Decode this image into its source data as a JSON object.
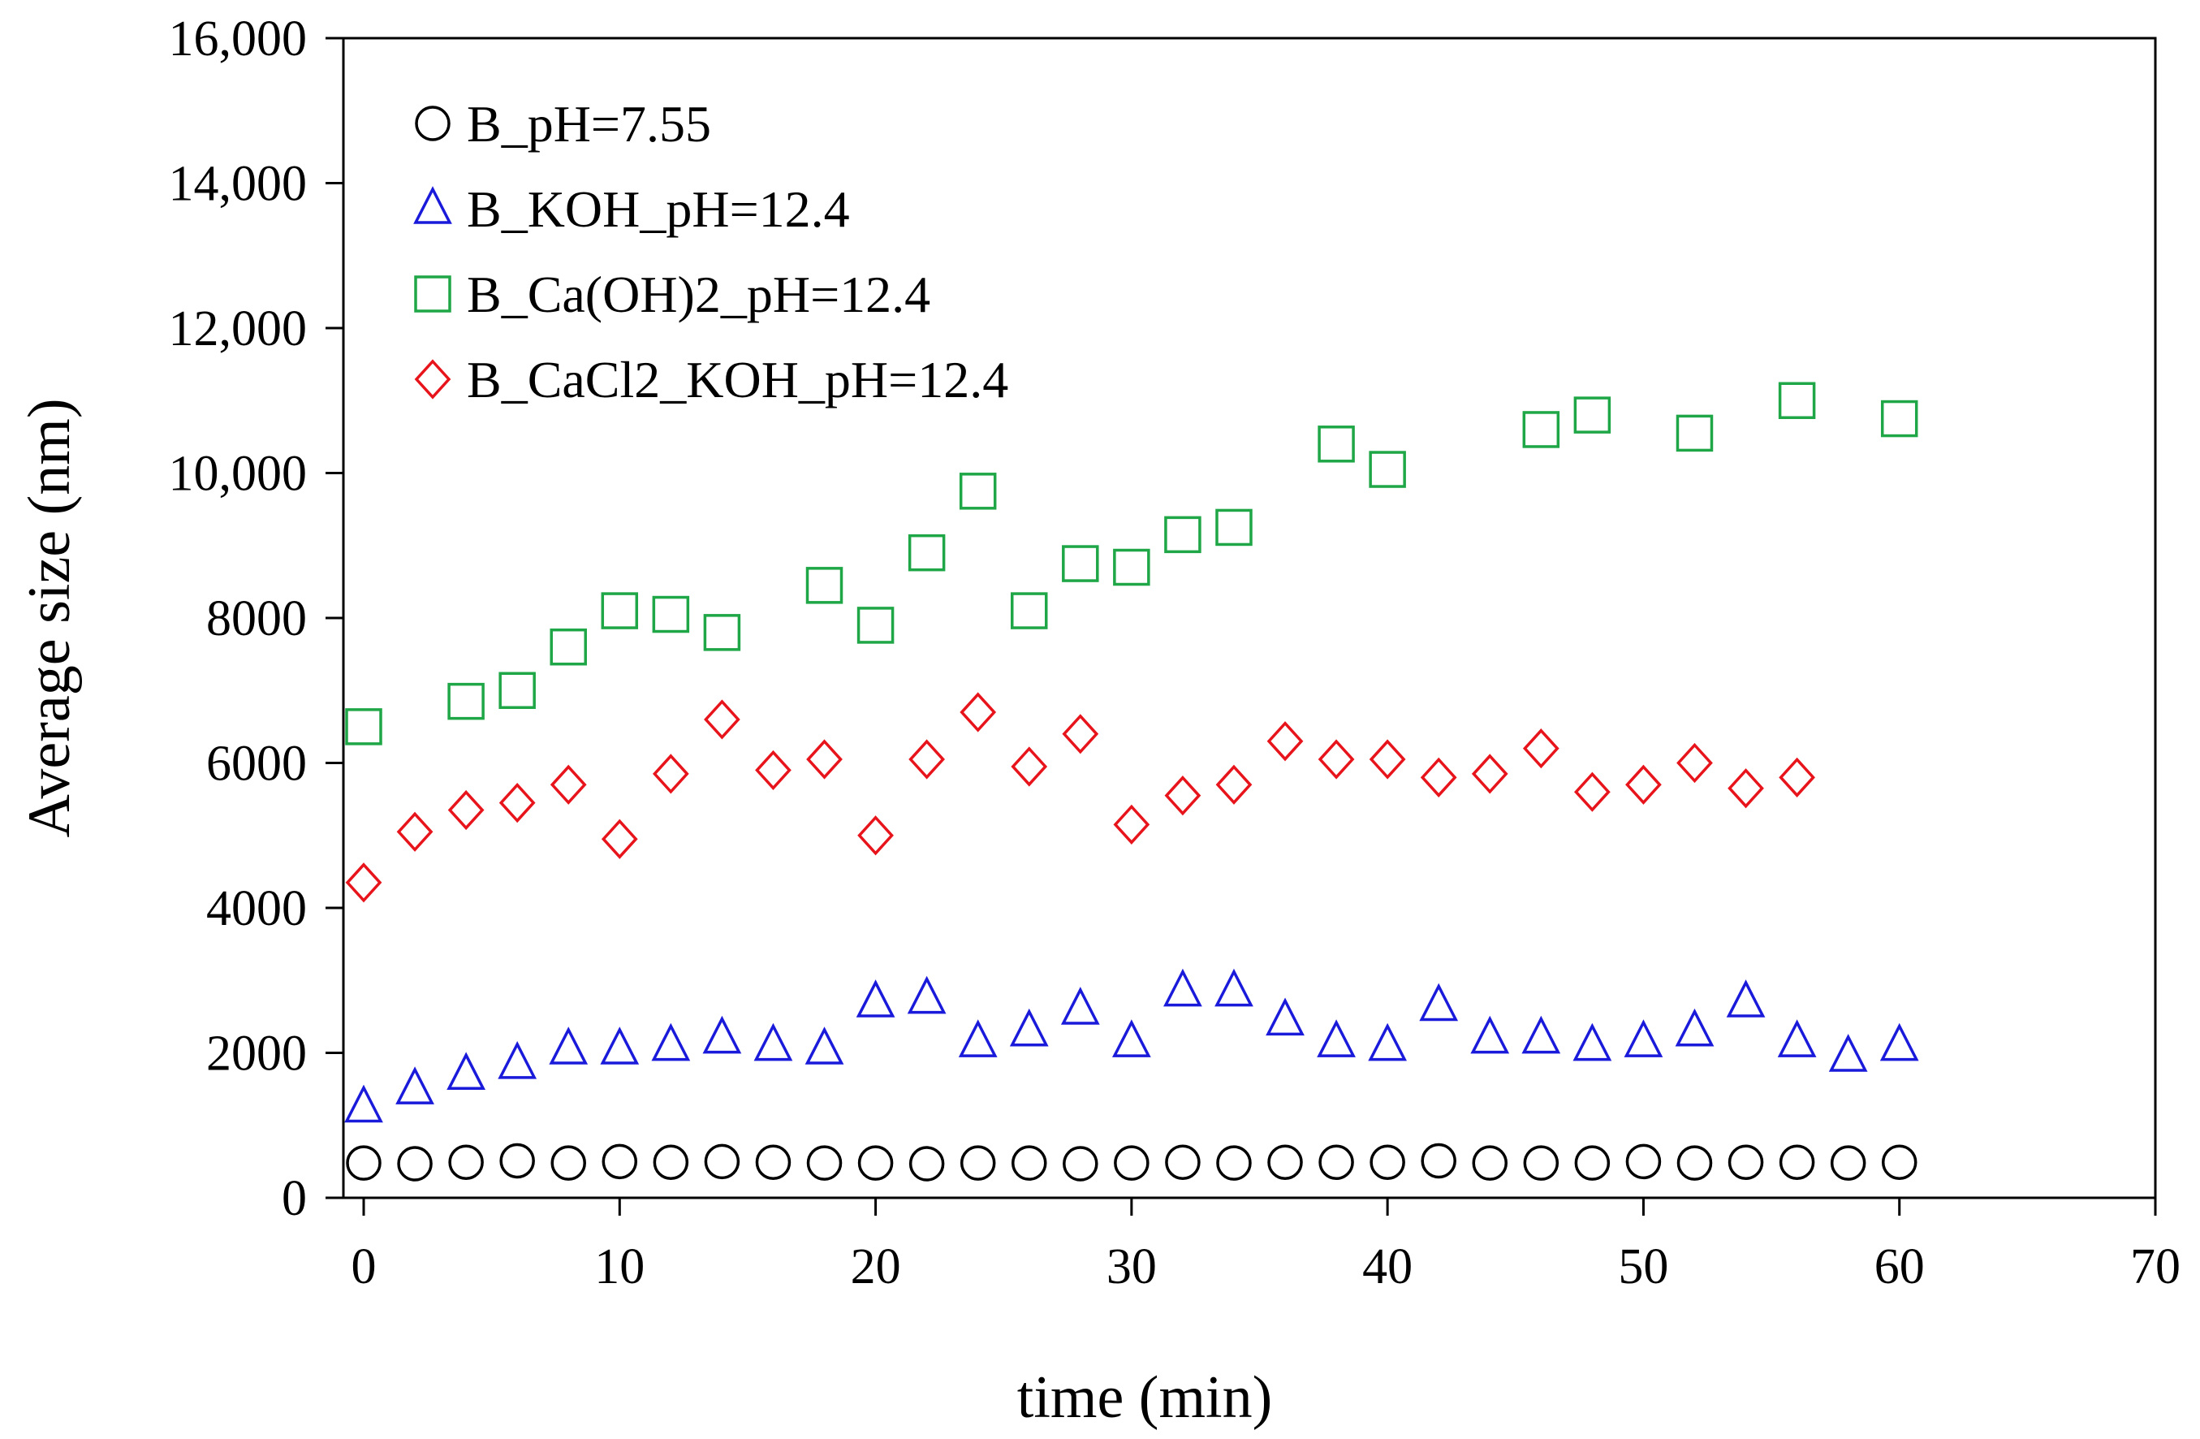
{
  "chart_data": {
    "type": "scatter",
    "title": "",
    "xlabel": "time (min)",
    "ylabel": "Average size (nm)",
    "xlim": [
      0,
      70
    ],
    "ylim": [
      0,
      16000
    ],
    "xticks": [
      0,
      10,
      20,
      30,
      40,
      50,
      60,
      70
    ],
    "xtick_labels": [
      "0",
      "10",
      "20",
      "30",
      "40",
      "50",
      "60",
      "70"
    ],
    "yticks": [
      0,
      2000,
      4000,
      6000,
      8000,
      10000,
      12000,
      14000,
      16000
    ],
    "ytick_labels": [
      "0",
      "2000",
      "4000",
      "6000",
      "8000",
      "10,000",
      "12,000",
      "14,000",
      "16,000"
    ],
    "grid": false,
    "legend_position": "top-left",
    "series": [
      {
        "name": "B_pH=7.55",
        "marker": "circle",
        "color": "#000000",
        "x": [
          0,
          2,
          4,
          6,
          8,
          10,
          12,
          14,
          16,
          18,
          20,
          22,
          24,
          26,
          28,
          30,
          32,
          34,
          36,
          38,
          40,
          42,
          44,
          46,
          48,
          50,
          52,
          54,
          56,
          58,
          60
        ],
        "y": [
          480,
          470,
          490,
          510,
          480,
          500,
          490,
          500,
          490,
          480,
          480,
          470,
          480,
          480,
          470,
          480,
          490,
          480,
          490,
          490,
          490,
          510,
          480,
          480,
          480,
          500,
          480,
          490,
          490,
          480,
          490
        ]
      },
      {
        "name": "B_KOH_pH=12.4",
        "marker": "triangle",
        "color": "#1a1adb",
        "x": [
          0,
          2,
          4,
          6,
          8,
          10,
          12,
          14,
          16,
          18,
          20,
          22,
          24,
          26,
          28,
          30,
          32,
          34,
          36,
          38,
          40,
          42,
          44,
          46,
          48,
          50,
          52,
          54,
          56,
          58,
          60
        ],
        "y": [
          1250,
          1500,
          1700,
          1850,
          2050,
          2050,
          2100,
          2200,
          2100,
          2050,
          2700,
          2750,
          2150,
          2300,
          2600,
          2150,
          2850,
          2850,
          2450,
          2150,
          2100,
          2650,
          2200,
          2200,
          2100,
          2150,
          2300,
          2700,
          2150,
          1950,
          2100
        ]
      },
      {
        "name": "B_Ca(OH)2_pH=12.4",
        "marker": "square",
        "color": "#1fa646",
        "x": [
          0,
          4,
          6,
          8,
          10,
          12,
          14,
          18,
          20,
          22,
          24,
          26,
          28,
          30,
          32,
          34,
          38,
          40,
          46,
          48,
          52,
          56,
          60
        ],
        "y": [
          6500,
          6850,
          7000,
          7600,
          8100,
          8050,
          7800,
          8450,
          7900,
          8900,
          9750,
          8100,
          8750,
          8700,
          9150,
          9250,
          10400,
          10050,
          10600,
          10800,
          10550,
          11000,
          10750
        ]
      },
      {
        "name": "B_CaCl2_KOH_pH=12.4",
        "marker": "diamond",
        "color": "#e8141b",
        "x": [
          0,
          2,
          4,
          6,
          8,
          10,
          12,
          14,
          16,
          18,
          20,
          22,
          24,
          26,
          28,
          30,
          32,
          34,
          36,
          38,
          40,
          42,
          44,
          46,
          48,
          50,
          52,
          54,
          56
        ],
        "y": [
          4350,
          5050,
          5350,
          5450,
          5700,
          4950,
          5850,
          6600,
          5900,
          6050,
          5000,
          6050,
          6700,
          5950,
          6400,
          5150,
          5550,
          5700,
          6300,
          6050,
          6050,
          5800,
          5850,
          6200,
          5600,
          5700,
          6000,
          5650,
          5800
        ]
      }
    ]
  }
}
